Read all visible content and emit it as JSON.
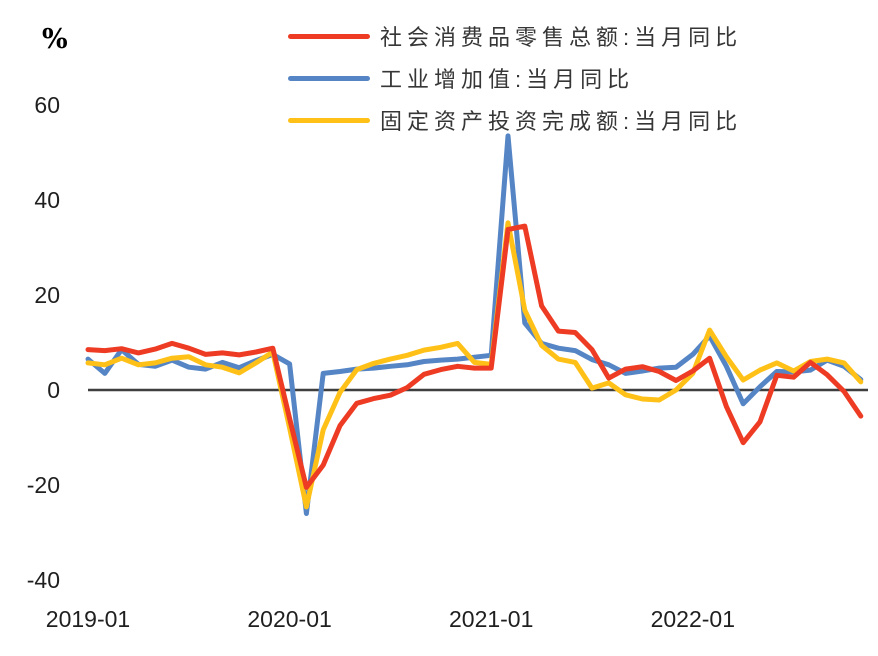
{
  "page": {
    "background": "#ffffff"
  },
  "chart_data": {
    "type": "line",
    "unit_label": "%",
    "grid": false,
    "legend_position": "top-center",
    "zero_line_color": "#3f3f3f",
    "ylim": [
      -40,
      65
    ],
    "yticks": [
      60,
      40,
      20,
      0,
      -20,
      -40
    ],
    "xticks": [
      "2019-01",
      "2020-01",
      "2021-01",
      "2022-01"
    ],
    "x": [
      "2019-01",
      "2019-02",
      "2019-03",
      "2019-04",
      "2019-05",
      "2019-06",
      "2019-07",
      "2019-08",
      "2019-09",
      "2019-10",
      "2019-11",
      "2019-12",
      "2020-01",
      "2020-02",
      "2020-03",
      "2020-04",
      "2020-05",
      "2020-06",
      "2020-07",
      "2020-08",
      "2020-09",
      "2020-10",
      "2020-11",
      "2020-12",
      "2021-01",
      "2021-02",
      "2021-03",
      "2021-04",
      "2021-05",
      "2021-06",
      "2021-07",
      "2021-08",
      "2021-09",
      "2021-10",
      "2021-11",
      "2021-12",
      "2022-01",
      "2022-02",
      "2022-03",
      "2022-04",
      "2022-05",
      "2022-06",
      "2022-07",
      "2022-08",
      "2022-09",
      "2022-10",
      "2022-11"
    ],
    "series": [
      {
        "id": "retail",
        "label": "社会消费品零售总额:当月同比",
        "color": "#EE3B23",
        "z": 2,
        "values": [
          8.5,
          8.3,
          8.7,
          7.8,
          8.6,
          9.8,
          8.8,
          7.5,
          7.8,
          7.4,
          8.0,
          8.8,
          -6.0,
          -20.5,
          -15.8,
          -7.5,
          -2.8,
          -1.8,
          -1.1,
          0.5,
          3.3,
          4.3,
          5.0,
          4.6,
          4.6,
          33.8,
          34.5,
          17.7,
          12.4,
          12.1,
          8.5,
          2.5,
          4.4,
          4.9,
          3.9,
          2.0,
          4.0,
          6.7,
          -3.5,
          -11.1,
          -6.7,
          3.1,
          2.7,
          5.8,
          3.2,
          -0.3,
          -5.5
        ]
      },
      {
        "id": "industrial",
        "label": "工业增加值:当月同比",
        "color": "#5585C5",
        "z": 0,
        "values": [
          6.5,
          3.5,
          8.5,
          5.4,
          5.0,
          6.3,
          4.8,
          4.4,
          5.8,
          4.7,
          6.2,
          7.5,
          5.5,
          -26.0,
          3.5,
          3.9,
          4.4,
          4.6,
          5.0,
          5.3,
          6.0,
          6.3,
          6.5,
          6.9,
          7.3,
          53.5,
          14.1,
          9.8,
          8.8,
          8.3,
          6.4,
          5.3,
          3.5,
          4.0,
          4.6,
          4.8,
          7.5,
          11.4,
          5.0,
          -2.9,
          0.7,
          3.9,
          3.8,
          4.2,
          6.3,
          5.0,
          2.2
        ]
      },
      {
        "id": "fixed-asset-investment",
        "label": "固定资产投资完成额:当月同比",
        "color": "#FFC117",
        "z": 1,
        "values": [
          5.7,
          5.3,
          6.7,
          5.3,
          5.7,
          6.7,
          7.0,
          5.3,
          4.8,
          3.6,
          5.7,
          8.0,
          -8.0,
          -24.6,
          -8.4,
          -0.5,
          4.3,
          5.6,
          6.5,
          7.3,
          8.4,
          9.0,
          9.8,
          5.8,
          5.4,
          35.2,
          16.8,
          9.4,
          6.5,
          5.8,
          0.4,
          1.5,
          -1.0,
          -1.9,
          -2.1,
          0.0,
          3.5,
          12.6,
          7.0,
          2.1,
          4.2,
          5.7,
          4.0,
          6.0,
          6.5,
          5.7,
          1.7
        ]
      }
    ]
  }
}
